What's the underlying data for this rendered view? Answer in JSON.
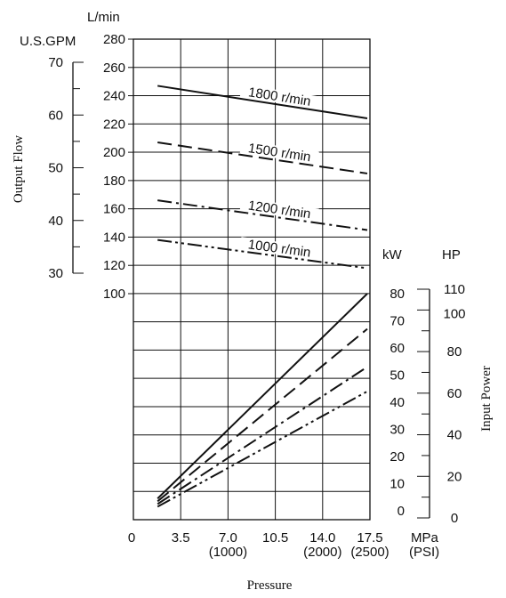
{
  "chart_data": {
    "type": "line",
    "xlabel": "Pressure",
    "x_unit": "MPa",
    "x_unit_alt": "(PSI)",
    "xticks": [
      "0",
      "3.5",
      "7.0",
      "10.5",
      "14.0",
      "17.5"
    ],
    "xticks_alt": [
      "",
      "",
      "(1000)",
      "",
      "(2000)",
      "(2500)"
    ],
    "xlim": [
      0,
      17.5
    ],
    "flow": {
      "ylabel": "Output Flow",
      "unit_lmin": "L/min",
      "unit_gpm": "U.S.GPM",
      "lmin_ticks": [
        "100",
        "120",
        "140",
        "160",
        "180",
        "200",
        "220",
        "240",
        "260",
        "280"
      ],
      "gpm_ticks": [
        "30",
        "40",
        "50",
        "60",
        "70"
      ],
      "ylim_lmin": [
        100,
        280
      ],
      "series": [
        {
          "name": "1800 r/min",
          "style": "solid",
          "x": [
            1.0,
            17.5
          ],
          "y": [
            247,
            224
          ]
        },
        {
          "name": "1500 r/min",
          "style": "dashed",
          "x": [
            1.0,
            17.5
          ],
          "y": [
            207,
            185
          ]
        },
        {
          "name": "1200 r/min",
          "style": "dash-dot",
          "x": [
            1.0,
            17.5
          ],
          "y": [
            166,
            145
          ]
        },
        {
          "name": "1000 r/min",
          "style": "dash-dot-dot",
          "x": [
            1.0,
            17.5
          ],
          "y": [
            138,
            118
          ]
        }
      ]
    },
    "power": {
      "ylabel": "Input Power",
      "unit_kw": "kW",
      "unit_hp": "HP",
      "kw_ticks": [
        "0",
        "10",
        "20",
        "30",
        "40",
        "50",
        "60",
        "70",
        "80"
      ],
      "hp_ticks": [
        "0",
        "20",
        "40",
        "60",
        "80",
        "100",
        "110"
      ],
      "ylim_kw": [
        -1,
        80
      ],
      "series": [
        {
          "name": "1800 r/min",
          "style": "solid",
          "x": [
            1.0,
            17.5
          ],
          "y": [
            4.5,
            80
          ]
        },
        {
          "name": "1500 r/min",
          "style": "dashed",
          "x": [
            1.0,
            17.5
          ],
          "y": [
            3.5,
            67
          ]
        },
        {
          "name": "1200 r/min",
          "style": "dash-dot",
          "x": [
            1.0,
            17.5
          ],
          "y": [
            2.5,
            53
          ]
        },
        {
          "name": "1000 r/min",
          "style": "dash-dot-dot",
          "x": [
            1.0,
            17.5
          ],
          "y": [
            1.5,
            44
          ]
        }
      ]
    }
  }
}
